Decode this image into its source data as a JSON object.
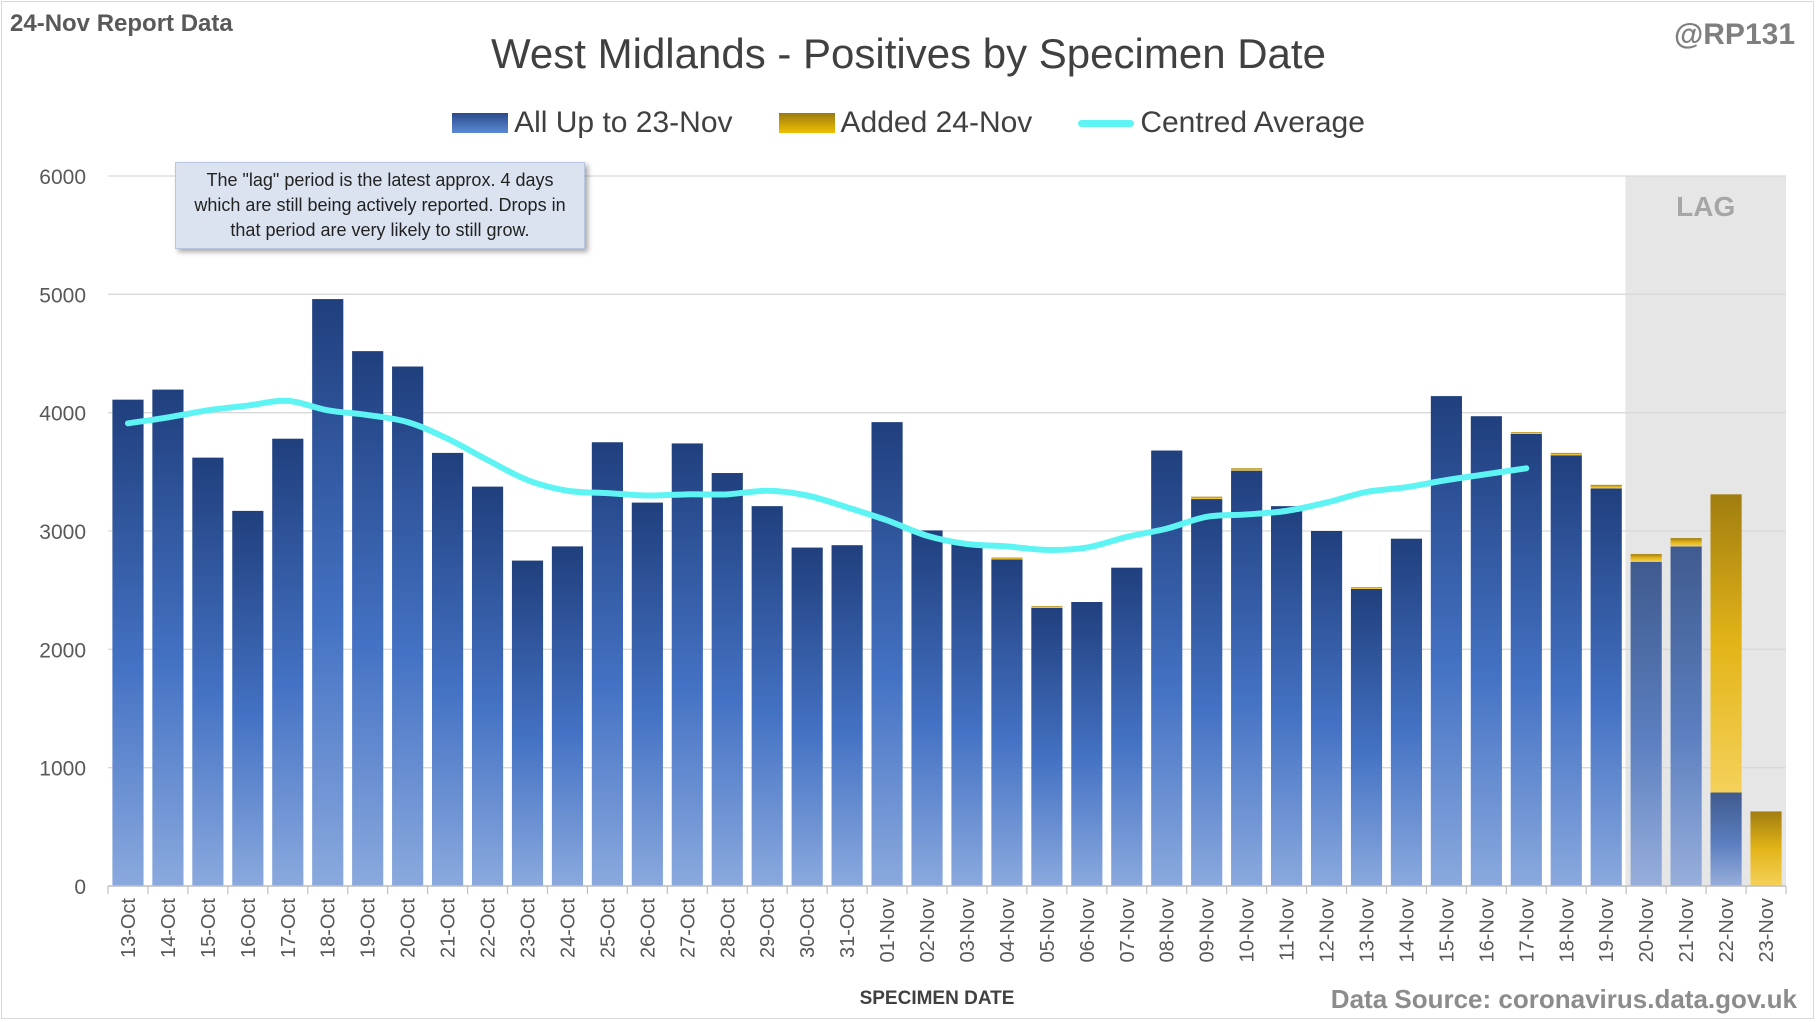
{
  "header": {
    "report_label": "24-Nov Report Data",
    "handle": "@RP131"
  },
  "footer": {
    "source": "Data Source: coronavirus.data.gov.uk"
  },
  "annotation": {
    "text": "The \"lag\" period is the latest approx. 4 days which are still being actively reported. Drops in that period are very likely to still grow."
  },
  "colors": {
    "base_bar": "#2f5597",
    "added_bar": "#f2c200",
    "average_line": "#5ff4f4",
    "lag_shading": "#e6e6e6"
  },
  "chart_data": {
    "type": "bar",
    "title": "West Midlands - Positives by Specimen Date",
    "xlabel": "SPECIMEN DATE",
    "ylabel": "",
    "ylim": [
      0,
      6000
    ],
    "yticks": [
      0,
      1000,
      2000,
      3000,
      4000,
      5000,
      6000
    ],
    "grid": true,
    "stacked": true,
    "legend_position": "top",
    "categories": [
      "13-Oct",
      "14-Oct",
      "15-Oct",
      "16-Oct",
      "17-Oct",
      "18-Oct",
      "19-Oct",
      "20-Oct",
      "21-Oct",
      "22-Oct",
      "23-Oct",
      "24-Oct",
      "25-Oct",
      "26-Oct",
      "27-Oct",
      "28-Oct",
      "29-Oct",
      "30-Oct",
      "31-Oct",
      "01-Nov",
      "02-Nov",
      "03-Nov",
      "04-Nov",
      "05-Nov",
      "06-Nov",
      "07-Nov",
      "08-Nov",
      "09-Nov",
      "10-Nov",
      "11-Nov",
      "12-Nov",
      "13-Nov",
      "14-Nov",
      "15-Nov",
      "16-Nov",
      "17-Nov",
      "18-Nov",
      "19-Nov",
      "20-Nov",
      "21-Nov",
      "22-Nov",
      "23-Nov"
    ],
    "series": [
      {
        "name": "All Up to 23-Nov",
        "kind": "bar",
        "values": [
          4110,
          4195,
          3620,
          3170,
          3780,
          4960,
          4520,
          4390,
          3660,
          3375,
          2750,
          2870,
          3750,
          3240,
          3740,
          3490,
          3210,
          2860,
          2880,
          3920,
          3005,
          2900,
          2760,
          2350,
          2400,
          2690,
          3680,
          3270,
          3510,
          3210,
          3000,
          2510,
          2935,
          4140,
          3970,
          3820,
          3640,
          3360,
          2740,
          2870,
          790,
          0
        ]
      },
      {
        "name": "Added 24-Nov",
        "kind": "bar",
        "values": [
          0,
          0,
          0,
          0,
          0,
          0,
          0,
          0,
          0,
          0,
          0,
          0,
          0,
          0,
          0,
          0,
          0,
          0,
          0,
          0,
          0,
          0,
          15,
          15,
          0,
          0,
          0,
          20,
          20,
          0,
          0,
          15,
          0,
          0,
          0,
          15,
          20,
          30,
          65,
          70,
          2520,
          630
        ]
      },
      {
        "name": "Centred Average",
        "kind": "line",
        "values": [
          3910,
          3960,
          4020,
          4060,
          4100,
          4020,
          3980,
          3920,
          3780,
          3600,
          3430,
          3340,
          3320,
          3300,
          3310,
          3310,
          3340,
          3300,
          3200,
          3090,
          2960,
          2890,
          2870,
          2840,
          2860,
          2950,
          3020,
          3120,
          3140,
          3170,
          3240,
          3330,
          3370,
          3430,
          3480,
          3530,
          null,
          null,
          null,
          null,
          null,
          null
        ]
      }
    ],
    "shaded_region": {
      "label": "LAG",
      "from_category": "20-Nov",
      "to_category": "23-Nov"
    }
  }
}
